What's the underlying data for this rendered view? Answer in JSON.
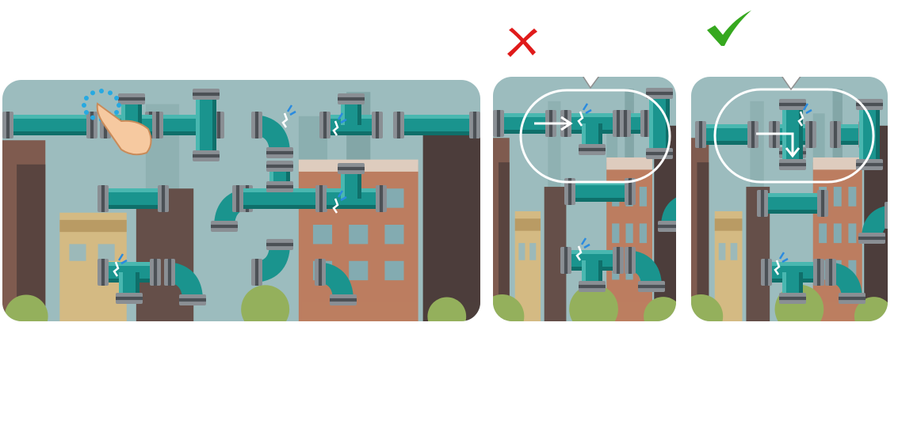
{
  "tutorial": {
    "step": "rotate-pipe-to-connect",
    "wrong_marker": "cross-icon",
    "right_marker": "check-icon"
  },
  "colors": {
    "pipe": "#1a948e",
    "pipe_dark": "#0f6f6a",
    "pipe_light": "#5ec6bf",
    "joint": "#8a8f94",
    "joint_dark": "#4c5156",
    "leak": "#2a8be0",
    "sky": "#8fb3b5",
    "building_brown": "#6b3a2a",
    "building_brick": "#b7653f",
    "building_tan": "#d6b16b",
    "tree": "#86a53a",
    "cross": "#e01b1b",
    "check": "#36a81f"
  }
}
